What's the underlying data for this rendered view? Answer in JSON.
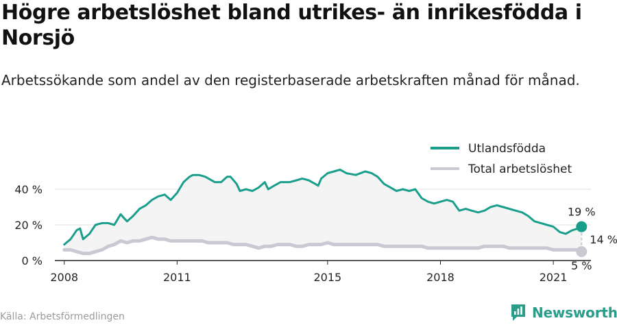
{
  "title": "Högre arbetslöshet bland utrikes- än inrikesfödda i Norsjö",
  "subtitle": "Arbetssökande som andel av den registerbaserade arbetskraften månad för månad.",
  "source": "Källa: Arbetsförmedlingen",
  "brand": {
    "name": "Newsworthy",
    "logo_icon": "newsworthy-logo-icon"
  },
  "colors": {
    "utlandsfodda": "#1a9e8c",
    "total": "#c9c9d4",
    "area": "#f4f4f4",
    "grid": "#e2e2e2",
    "axis": "#222222"
  },
  "chart_data": {
    "type": "line",
    "x_ticks": [
      "2008",
      "2011",
      "2015",
      "2018",
      "2021"
    ],
    "y_ticks": [
      "0 %",
      "20 %",
      "40 %"
    ],
    "ylim": [
      0,
      55
    ],
    "xlim": [
      2007.75,
      2022.0
    ],
    "grid": true,
    "legend_position": "top-right",
    "series": [
      {
        "name": "Utlandsfödda",
        "color": "#1a9e8c",
        "points": [
          [
            2008.0,
            9
          ],
          [
            2008.17,
            12
          ],
          [
            2008.33,
            17
          ],
          [
            2008.42,
            18
          ],
          [
            2008.5,
            12
          ],
          [
            2008.67,
            15
          ],
          [
            2008.83,
            20
          ],
          [
            2009.0,
            21
          ],
          [
            2009.17,
            21
          ],
          [
            2009.33,
            20
          ],
          [
            2009.5,
            26
          ],
          [
            2009.58,
            24
          ],
          [
            2009.67,
            22
          ],
          [
            2009.83,
            25
          ],
          [
            2010.0,
            29
          ],
          [
            2010.17,
            31
          ],
          [
            2010.33,
            34
          ],
          [
            2010.5,
            36
          ],
          [
            2010.67,
            37
          ],
          [
            2010.83,
            34
          ],
          [
            2011.0,
            38
          ],
          [
            2011.17,
            44
          ],
          [
            2011.33,
            47
          ],
          [
            2011.42,
            48
          ],
          [
            2011.58,
            48
          ],
          [
            2011.75,
            47
          ],
          [
            2012.0,
            44
          ],
          [
            2012.17,
            44
          ],
          [
            2012.33,
            47
          ],
          [
            2012.42,
            47
          ],
          [
            2012.58,
            43
          ],
          [
            2012.67,
            39
          ],
          [
            2012.83,
            40
          ],
          [
            2013.0,
            39
          ],
          [
            2013.17,
            41
          ],
          [
            2013.33,
            44
          ],
          [
            2013.42,
            40
          ],
          [
            2013.58,
            42
          ],
          [
            2013.75,
            44
          ],
          [
            2014.0,
            44
          ],
          [
            2014.17,
            45
          ],
          [
            2014.33,
            46
          ],
          [
            2014.5,
            45
          ],
          [
            2014.67,
            43
          ],
          [
            2014.75,
            42
          ],
          [
            2014.83,
            46
          ],
          [
            2015.0,
            49
          ],
          [
            2015.17,
            50
          ],
          [
            2015.33,
            51
          ],
          [
            2015.5,
            49
          ],
          [
            2015.75,
            48
          ],
          [
            2016.0,
            50
          ],
          [
            2016.17,
            49
          ],
          [
            2016.33,
            47
          ],
          [
            2016.5,
            43
          ],
          [
            2016.67,
            41
          ],
          [
            2016.83,
            39
          ],
          [
            2017.0,
            40
          ],
          [
            2017.17,
            39
          ],
          [
            2017.33,
            40
          ],
          [
            2017.5,
            35
          ],
          [
            2017.67,
            33
          ],
          [
            2017.83,
            32
          ],
          [
            2018.0,
            33
          ],
          [
            2018.17,
            34
          ],
          [
            2018.33,
            33
          ],
          [
            2018.5,
            28
          ],
          [
            2018.67,
            29
          ],
          [
            2018.83,
            28
          ],
          [
            2019.0,
            27
          ],
          [
            2019.17,
            28
          ],
          [
            2019.33,
            30
          ],
          [
            2019.5,
            31
          ],
          [
            2019.67,
            30
          ],
          [
            2019.83,
            29
          ],
          [
            2020.0,
            28
          ],
          [
            2020.17,
            27
          ],
          [
            2020.33,
            25
          ],
          [
            2020.5,
            22
          ],
          [
            2020.67,
            21
          ],
          [
            2020.83,
            20
          ],
          [
            2021.0,
            19
          ],
          [
            2021.17,
            16
          ],
          [
            2021.33,
            15
          ],
          [
            2021.5,
            17
          ],
          [
            2021.67,
            18
          ],
          [
            2021.75,
            19
          ]
        ]
      },
      {
        "name": "Total arbetslöshet",
        "color": "#c9c9d4",
        "points": [
          [
            2008.0,
            6
          ],
          [
            2008.17,
            6
          ],
          [
            2008.33,
            5
          ],
          [
            2008.5,
            4
          ],
          [
            2008.67,
            4
          ],
          [
            2008.83,
            5
          ],
          [
            2009.0,
            6
          ],
          [
            2009.17,
            8
          ],
          [
            2009.33,
            9
          ],
          [
            2009.5,
            11
          ],
          [
            2009.67,
            10
          ],
          [
            2009.83,
            11
          ],
          [
            2010.0,
            11
          ],
          [
            2010.17,
            12
          ],
          [
            2010.33,
            13
          ],
          [
            2010.5,
            12
          ],
          [
            2010.67,
            12
          ],
          [
            2010.83,
            11
          ],
          [
            2011.0,
            11
          ],
          [
            2011.17,
            11
          ],
          [
            2011.33,
            11
          ],
          [
            2011.5,
            11
          ],
          [
            2011.67,
            11
          ],
          [
            2011.83,
            10
          ],
          [
            2012.0,
            10
          ],
          [
            2012.17,
            10
          ],
          [
            2012.33,
            10
          ],
          [
            2012.5,
            9
          ],
          [
            2012.67,
            9
          ],
          [
            2012.83,
            9
          ],
          [
            2013.0,
            8
          ],
          [
            2013.17,
            7
          ],
          [
            2013.33,
            8
          ],
          [
            2013.5,
            8
          ],
          [
            2013.67,
            9
          ],
          [
            2013.83,
            9
          ],
          [
            2014.0,
            9
          ],
          [
            2014.17,
            8
          ],
          [
            2014.33,
            8
          ],
          [
            2014.5,
            9
          ],
          [
            2014.67,
            9
          ],
          [
            2014.83,
            9
          ],
          [
            2015.0,
            10
          ],
          [
            2015.17,
            9
          ],
          [
            2015.33,
            9
          ],
          [
            2015.5,
            9
          ],
          [
            2015.67,
            9
          ],
          [
            2015.83,
            9
          ],
          [
            2016.0,
            9
          ],
          [
            2016.17,
            9
          ],
          [
            2016.33,
            9
          ],
          [
            2016.5,
            8
          ],
          [
            2016.67,
            8
          ],
          [
            2016.83,
            8
          ],
          [
            2017.0,
            8
          ],
          [
            2017.17,
            8
          ],
          [
            2017.33,
            8
          ],
          [
            2017.5,
            8
          ],
          [
            2017.67,
            7
          ],
          [
            2017.83,
            7
          ],
          [
            2018.0,
            7
          ],
          [
            2018.17,
            7
          ],
          [
            2018.33,
            7
          ],
          [
            2018.5,
            7
          ],
          [
            2018.67,
            7
          ],
          [
            2018.83,
            7
          ],
          [
            2019.0,
            7
          ],
          [
            2019.17,
            8
          ],
          [
            2019.33,
            8
          ],
          [
            2019.5,
            8
          ],
          [
            2019.67,
            8
          ],
          [
            2019.83,
            7
          ],
          [
            2020.0,
            7
          ],
          [
            2020.17,
            7
          ],
          [
            2020.33,
            7
          ],
          [
            2020.5,
            7
          ],
          [
            2020.67,
            7
          ],
          [
            2020.83,
            7
          ],
          [
            2021.0,
            6
          ],
          [
            2021.17,
            6
          ],
          [
            2021.33,
            6
          ],
          [
            2021.5,
            6
          ],
          [
            2021.67,
            6
          ],
          [
            2021.75,
            5
          ]
        ]
      }
    ],
    "annotations": {
      "last_utlandsfodda": "19 %",
      "last_total": "5 %",
      "gap": "14 %"
    }
  }
}
